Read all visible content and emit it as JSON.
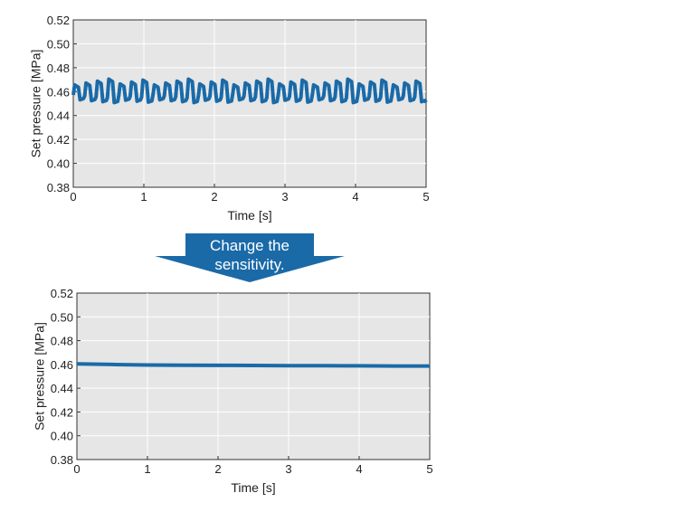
{
  "chart_data": [
    {
      "type": "line",
      "xlabel": "Time [s]",
      "ylabel": "Set pressure [MPa]",
      "xlim": [
        0,
        5
      ],
      "ylim": [
        0.38,
        0.52
      ],
      "x_ticks": [
        "0",
        "1",
        "2",
        "3",
        "4",
        "5"
      ],
      "y_ticks": [
        "0.52",
        "0.50",
        "0.48",
        "0.46",
        "0.44",
        "0.42",
        "0.40",
        "0.38"
      ],
      "grid": true,
      "line_color": "#1a6aa8",
      "series": [
        {
          "description_shape": "oscillation",
          "mean": 0.46,
          "high": 0.468,
          "low": 0.452,
          "cycles": 31,
          "x_start": 0,
          "x_end": 5,
          "y_end": 0.451
        }
      ]
    },
    {
      "type": "line",
      "xlabel": "Time [s]",
      "ylabel": "Set pressure [MPa]",
      "xlim": [
        0,
        5
      ],
      "ylim": [
        0.38,
        0.52
      ],
      "x_ticks": [
        "0",
        "1",
        "2",
        "3",
        "4",
        "5"
      ],
      "y_ticks": [
        "0.52",
        "0.50",
        "0.48",
        "0.46",
        "0.44",
        "0.42",
        "0.40",
        "0.38"
      ],
      "grid": true,
      "line_color": "#1a6aa8",
      "series": [
        {
          "x": [
            0,
            0.5,
            1,
            1.5,
            2,
            2.5,
            3,
            3.5,
            4,
            4.5,
            5
          ],
          "y": [
            0.4605,
            0.46,
            0.4595,
            0.4593,
            0.4592,
            0.4591,
            0.459,
            0.4589,
            0.4588,
            0.4587,
            0.4587
          ]
        }
      ]
    }
  ],
  "arrow": {
    "line1": "Change the",
    "line2": "sensitivity.",
    "color": "#1a6aa8"
  }
}
